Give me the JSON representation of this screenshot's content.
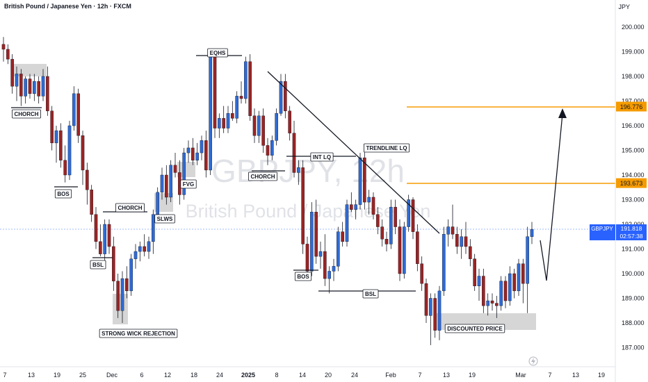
{
  "header": {
    "title": "British Pound / Japanese Yen · 12h · FXCM",
    "currency": "JPY"
  },
  "watermark": {
    "symbol": "GBPJPY, 12h",
    "name": "British Pound / Japanese Yen"
  },
  "price_tag": {
    "symbol": "GBPJPY",
    "price": "191.818",
    "countdown": "02:57:38",
    "color": "#2962ff"
  },
  "level_tags": [
    {
      "label": "196.776",
      "value": 196.776,
      "color": "#f59b00"
    },
    {
      "label": "193.673",
      "value": 193.673,
      "color": "#f59b00"
    }
  ],
  "colors": {
    "up": "#2f6bd6",
    "down": "#9c2424",
    "level": "#f59b00",
    "zone": "#c8c8c8"
  },
  "chart_data": {
    "type": "candlestick",
    "symbol": "GBPJPY",
    "timeframe": "12h",
    "ylim": [
      186.6,
      200.5
    ],
    "y_ticks": [
      "200.000",
      "199.000",
      "198.000",
      "197.000",
      "196.000",
      "195.000",
      "194.000",
      "193.000",
      "192.000",
      "191.000",
      "190.000",
      "189.000",
      "188.000",
      "187.000"
    ],
    "x_ticks": [
      "7",
      "13",
      "19",
      "25",
      "Dec",
      "6",
      "12",
      "18",
      "24",
      "2025",
      "8",
      "14",
      "20",
      "24",
      "Feb",
      "7",
      "13",
      "19",
      "Mar",
      "7",
      "13",
      "19"
    ],
    "annotations": [
      "CHORCH",
      "BOS",
      "BSL",
      "STRONG WICK REJECTION",
      "CHORCH",
      "SLWS",
      "FVG",
      "EQHS",
      "CHORCH",
      "INT LQ",
      "TRENDLINE LQ",
      "BOS",
      "BSL",
      "DISCOUNTED PRICE"
    ],
    "candles": [
      [
        199.3,
        199.6,
        198.6,
        199.1
      ],
      [
        199.1,
        199.3,
        198.5,
        198.7
      ],
      [
        198.7,
        198.9,
        197.3,
        197.6
      ],
      [
        197.6,
        198.4,
        197.0,
        198.1
      ],
      [
        198.1,
        198.3,
        196.8,
        197.2
      ],
      [
        197.2,
        198.0,
        196.9,
        197.9
      ],
      [
        197.9,
        198.1,
        197.1,
        197.3
      ],
      [
        197.3,
        198.1,
        197.0,
        197.8
      ],
      [
        197.8,
        198.0,
        196.9,
        197.2
      ],
      [
        197.2,
        198.3,
        197.0,
        198.0
      ],
      [
        198.0,
        198.4,
        196.4,
        196.6
      ],
      [
        196.6,
        196.8,
        195.0,
        195.3
      ],
      [
        195.3,
        196.0,
        194.5,
        195.8
      ],
      [
        195.8,
        196.1,
        194.3,
        194.6
      ],
      [
        194.6,
        195.2,
        193.7,
        194.0
      ],
      [
        194.0,
        196.2,
        193.8,
        196.0
      ],
      [
        196.0,
        197.6,
        195.8,
        197.3
      ],
      [
        197.3,
        197.5,
        195.3,
        195.6
      ],
      [
        195.6,
        195.8,
        193.6,
        194.2
      ],
      [
        194.2,
        194.5,
        192.8,
        193.4
      ],
      [
        193.4,
        193.6,
        192.1,
        192.4
      ],
      [
        192.4,
        192.7,
        191.0,
        191.3
      ],
      [
        191.3,
        192.0,
        190.7,
        190.8
      ],
      [
        190.8,
        192.2,
        190.5,
        192.0
      ],
      [
        192.0,
        192.2,
        190.8,
        191.1
      ],
      [
        191.1,
        191.5,
        189.3,
        189.7
      ],
      [
        189.7,
        190.0,
        188.2,
        188.5
      ],
      [
        188.5,
        190.1,
        188.0,
        189.8
      ],
      [
        189.8,
        190.3,
        189.0,
        189.3
      ],
      [
        189.3,
        190.8,
        189.1,
        190.6
      ],
      [
        190.6,
        191.2,
        190.2,
        190.9
      ],
      [
        190.9,
        191.3,
        190.5,
        191.1
      ],
      [
        191.1,
        191.6,
        190.7,
        190.9
      ],
      [
        190.9,
        191.5,
        190.6,
        191.3
      ],
      [
        191.3,
        192.6,
        190.8,
        192.4
      ],
      [
        192.4,
        193.5,
        192.2,
        193.3
      ],
      [
        193.3,
        194.3,
        193.0,
        194.0
      ],
      [
        194.0,
        194.4,
        192.8,
        193.1
      ],
      [
        193.1,
        194.6,
        192.9,
        194.4
      ],
      [
        194.4,
        194.9,
        193.9,
        194.1
      ],
      [
        194.1,
        194.6,
        192.8,
        193.2
      ],
      [
        193.2,
        195.1,
        193.0,
        194.9
      ],
      [
        194.9,
        195.4,
        194.5,
        195.1
      ],
      [
        195.1,
        195.5,
        194.4,
        194.6
      ],
      [
        194.6,
        195.3,
        194.4,
        194.9
      ],
      [
        194.9,
        195.6,
        194.6,
        195.4
      ],
      [
        195.4,
        195.8,
        193.9,
        194.2
      ],
      [
        194.2,
        198.9,
        194.0,
        198.8
      ],
      [
        198.8,
        198.9,
        195.5,
        195.9
      ],
      [
        195.9,
        196.5,
        195.5,
        196.3
      ],
      [
        196.3,
        196.8,
        195.7,
        195.9
      ],
      [
        195.9,
        196.8,
        195.7,
        196.5
      ],
      [
        196.5,
        197.0,
        196.2,
        196.3
      ],
      [
        196.3,
        197.4,
        196.1,
        197.2
      ],
      [
        197.2,
        197.8,
        196.9,
        197.1
      ],
      [
        197.1,
        198.8,
        196.9,
        198.6
      ],
      [
        198.6,
        198.9,
        196.2,
        196.4
      ],
      [
        196.4,
        196.7,
        195.3,
        195.6
      ],
      [
        195.6,
        196.6,
        195.3,
        196.4
      ],
      [
        196.4,
        196.7,
        194.9,
        195.2
      ],
      [
        195.2,
        195.5,
        194.4,
        194.8
      ],
      [
        194.8,
        195.6,
        194.6,
        195.4
      ],
      [
        195.4,
        196.7,
        195.2,
        196.5
      ],
      [
        196.5,
        198.1,
        196.4,
        197.8
      ],
      [
        197.8,
        198.1,
        196.3,
        196.6
      ],
      [
        196.6,
        196.8,
        195.4,
        195.7
      ],
      [
        195.7,
        196.2,
        193.9,
        194.1
      ],
      [
        194.1,
        194.6,
        193.6,
        194.3
      ],
      [
        194.3,
        194.6,
        190.8,
        191.2
      ],
      [
        191.2,
        191.5,
        190.0,
        190.1
      ],
      [
        190.1,
        192.9,
        189.9,
        192.5
      ],
      [
        192.5,
        193.0,
        190.4,
        190.7
      ],
      [
        190.7,
        191.3,
        190.2,
        190.9
      ],
      [
        190.9,
        191.6,
        189.5,
        189.8
      ],
      [
        189.8,
        190.3,
        189.2,
        190.1
      ],
      [
        190.1,
        190.6,
        189.7,
        190.3
      ],
      [
        190.3,
        191.9,
        190.1,
        191.7
      ],
      [
        191.7,
        192.1,
        191.1,
        191.3
      ],
      [
        191.3,
        193.0,
        191.1,
        192.8
      ],
      [
        192.8,
        193.3,
        192.5,
        192.6
      ],
      [
        192.6,
        193.0,
        192.2,
        192.8
      ],
      [
        192.8,
        194.9,
        192.6,
        194.7
      ],
      [
        194.7,
        195.0,
        192.6,
        192.9
      ],
      [
        192.9,
        193.4,
        192.4,
        193.1
      ],
      [
        193.1,
        193.3,
        192.2,
        192.4
      ],
      [
        192.4,
        192.7,
        191.6,
        191.9
      ],
      [
        191.9,
        192.2,
        191.1,
        191.4
      ],
      [
        191.4,
        191.7,
        190.9,
        191.2
      ],
      [
        191.2,
        193.0,
        191.0,
        192.7
      ],
      [
        192.7,
        193.0,
        191.6,
        191.9
      ],
      [
        191.9,
        192.2,
        189.7,
        190.0
      ],
      [
        190.0,
        192.1,
        189.8,
        191.9
      ],
      [
        191.9,
        193.2,
        191.7,
        193.0
      ],
      [
        193.0,
        193.1,
        191.4,
        191.7
      ],
      [
        191.7,
        192.0,
        190.1,
        190.4
      ],
      [
        190.4,
        190.7,
        189.3,
        189.6
      ],
      [
        189.6,
        189.8,
        188.0,
        188.3
      ],
      [
        188.3,
        189.2,
        187.1,
        189.0
      ],
      [
        189.0,
        189.2,
        187.4,
        187.7
      ],
      [
        187.7,
        189.5,
        187.3,
        189.3
      ],
      [
        189.3,
        191.9,
        189.1,
        191.6
      ],
      [
        191.6,
        192.2,
        191.1,
        191.9
      ],
      [
        191.9,
        192.8,
        191.4,
        191.6
      ],
      [
        191.6,
        191.9,
        190.8,
        191.1
      ],
      [
        191.1,
        191.8,
        190.6,
        191.5
      ],
      [
        191.5,
        192.1,
        190.8,
        191.1
      ],
      [
        191.1,
        191.4,
        190.3,
        190.6
      ],
      [
        190.6,
        190.8,
        189.3,
        189.5
      ],
      [
        189.5,
        190.2,
        188.9,
        189.9
      ],
      [
        189.9,
        190.2,
        188.4,
        188.7
      ],
      [
        188.7,
        189.2,
        188.3,
        188.9
      ],
      [
        188.9,
        189.2,
        188.5,
        188.8
      ],
      [
        188.8,
        189.1,
        188.2,
        188.7
      ],
      [
        188.7,
        189.9,
        188.5,
        189.7
      ],
      [
        189.7,
        189.9,
        188.6,
        188.9
      ],
      [
        188.9,
        190.3,
        188.7,
        190.0
      ],
      [
        190.0,
        190.2,
        189.0,
        189.3
      ],
      [
        189.3,
        190.6,
        189.1,
        190.4
      ],
      [
        190.4,
        190.6,
        188.8,
        189.6
      ],
      [
        189.6,
        191.9,
        188.4,
        191.5
      ],
      [
        191.5,
        192.1,
        191.2,
        191.8
      ]
    ]
  }
}
